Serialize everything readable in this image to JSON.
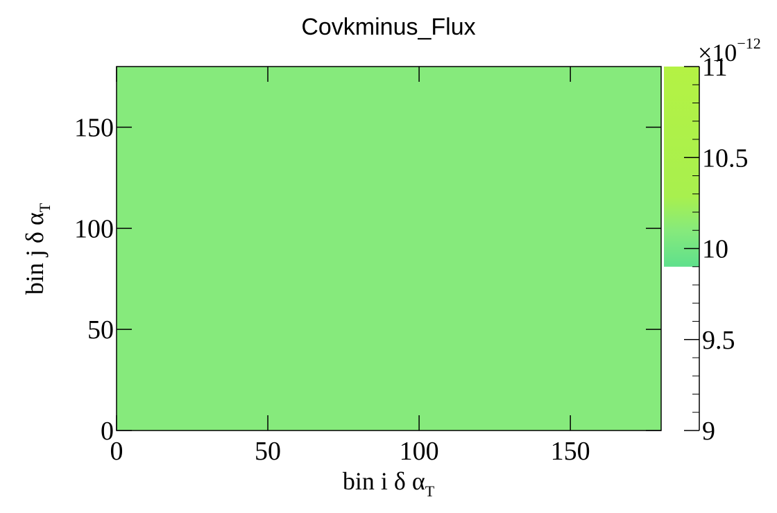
{
  "chart_data": {
    "type": "heatmap",
    "title": "Covkminus_Flux",
    "xlabel": "bin i δ α",
    "xlabel_subscript": "T",
    "ylabel": "bin j δ α",
    "ylabel_subscript": "T",
    "xlim": [
      0,
      180
    ],
    "ylim": [
      0,
      180
    ],
    "xticks": [
      "0",
      "50",
      "100",
      "150"
    ],
    "yticks": [
      "0",
      "50",
      "100",
      "150"
    ],
    "fill_value": 9.95e-12,
    "fill_color": "#86ea7c",
    "colorbar": {
      "range": [
        9,
        11
      ],
      "multiplier_base": "×10",
      "multiplier_exp": "−12",
      "ticks": [
        "9",
        "9.5",
        "10",
        "10.5",
        "11"
      ],
      "colored_range": [
        9.9,
        11
      ],
      "colors": [
        "#5fe08c",
        "#86ea7c",
        "#a8f04e",
        "#b4f244"
      ]
    }
  }
}
